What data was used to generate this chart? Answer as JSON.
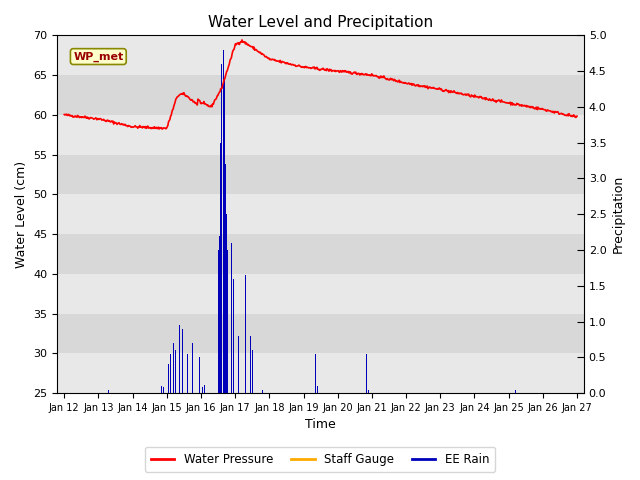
{
  "title": "Water Level and Precipitation",
  "xlabel": "Time",
  "ylabel_left": "Water Level (cm)",
  "ylabel_right": "Precipitation",
  "annotation_text": "WP_met",
  "ylim_left": [
    25,
    70
  ],
  "ylim_right": [
    0.0,
    5.0
  ],
  "yticks_left": [
    25,
    30,
    35,
    40,
    45,
    50,
    55,
    60,
    65,
    70
  ],
  "yticks_right": [
    0.0,
    0.5,
    1.0,
    1.5,
    2.0,
    2.5,
    3.0,
    3.5,
    4.0,
    4.5,
    5.0
  ],
  "xtick_labels": [
    "Jan 12",
    "Jan 13",
    "Jan 14",
    "Jan 15",
    "Jan 16",
    "Jan 17",
    "Jan 18",
    "Jan 19",
    "Jan 20",
    "Jan 21",
    "Jan 22",
    "Jan 23",
    "Jan 24",
    "Jan 25",
    "Jan 26",
    "Jan 27"
  ],
  "water_pressure_color": "#ff0000",
  "staff_gauge_color": "#ffaa00",
  "ee_rain_color": "#0000bb",
  "legend_items": [
    "Water Pressure",
    "Staff Gauge",
    "EE Rain"
  ],
  "band_colors": [
    "#e8e8e8",
    "#d8d8d8"
  ],
  "fig_bg": "#ffffff",
  "plot_bg": "#ffffff"
}
